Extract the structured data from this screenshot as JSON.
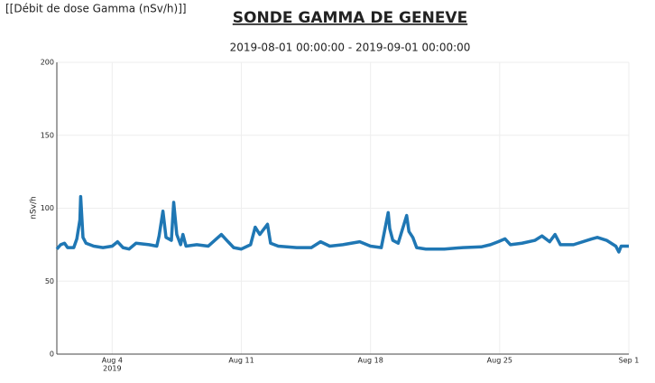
{
  "page_label": "[[Débit de dose Gamma (nSv/h)]]",
  "chart_data": {
    "type": "line",
    "title": "SONDE GAMMA DE GENEVE",
    "subtitle": "2019-08-01 00:00:00 - 2019-09-01 00:00:00",
    "y_label": "nSv/h",
    "xlim": [
      "2019-08-01T00:00",
      "2019-09-01T00:00"
    ],
    "xticks": [
      {
        "value": "2019-08-04T00:00",
        "label": "Aug 4"
      },
      {
        "value": "2019-08-11T00:00",
        "label": "Aug 11"
      },
      {
        "value": "2019-08-18T00:00",
        "label": "Aug 18"
      },
      {
        "value": "2019-08-25T00:00",
        "label": "Aug 25"
      },
      {
        "value": "2019-09-01T00:00",
        "label": "Sep 1"
      }
    ],
    "x_year_label": "2019",
    "ylim": [
      0,
      200
    ],
    "yticks": [
      0,
      50,
      100,
      150,
      200
    ],
    "grid": true,
    "series": [
      {
        "color": "#1f77b4",
        "x": [
          "2019-08-01T00:00",
          "2019-08-01T05:00",
          "2019-08-01T10:00",
          "2019-08-01T14:00",
          "2019-08-01T22:00",
          "2019-08-02T02:00",
          "2019-08-02T06:00",
          "2019-08-02T07:00",
          "2019-08-02T10:00",
          "2019-08-02T14:00",
          "2019-08-03T00:00",
          "2019-08-03T12:00",
          "2019-08-04T00:00",
          "2019-08-04T07:00",
          "2019-08-04T14:00",
          "2019-08-04T22:00",
          "2019-08-05T07:00",
          "2019-08-06T00:00",
          "2019-08-06T10:00",
          "2019-08-06T13:00",
          "2019-08-06T18:00",
          "2019-08-06T22:00",
          "2019-08-07T05:00",
          "2019-08-07T08:00",
          "2019-08-07T12:00",
          "2019-08-07T17:00",
          "2019-08-07T20:00",
          "2019-08-08T00:00",
          "2019-08-08T14:00",
          "2019-08-09T05:00",
          "2019-08-09T22:00",
          "2019-08-10T05:00",
          "2019-08-10T14:00",
          "2019-08-11T00:00",
          "2019-08-11T12:00",
          "2019-08-11T18:00",
          "2019-08-12T00:00",
          "2019-08-12T10:00",
          "2019-08-12T14:00",
          "2019-08-13T00:00",
          "2019-08-14T00:00",
          "2019-08-14T19:00",
          "2019-08-15T07:00",
          "2019-08-15T19:00",
          "2019-08-16T12:00",
          "2019-08-17T10:00",
          "2019-08-18T00:00",
          "2019-08-18T14:00",
          "2019-08-18T23:00",
          "2019-08-19T01:00",
          "2019-08-19T05:00",
          "2019-08-19T12:00",
          "2019-08-19T23:00",
          "2019-08-20T02:00",
          "2019-08-20T07:00",
          "2019-08-20T12:00",
          "2019-08-21T00:00",
          "2019-08-22T00:00",
          "2019-08-23T00:00",
          "2019-08-24T00:00",
          "2019-08-24T12:00",
          "2019-08-24T22:00",
          "2019-08-25T07:00",
          "2019-08-25T14:00",
          "2019-08-26T05:00",
          "2019-08-26T22:00",
          "2019-08-27T07:00",
          "2019-08-27T17:00",
          "2019-08-28T00:00",
          "2019-08-28T07:00",
          "2019-08-29T00:00",
          "2019-08-30T00:00",
          "2019-08-30T07:00",
          "2019-08-30T19:00",
          "2019-08-31T07:00",
          "2019-08-31T11:00",
          "2019-08-31T14:00",
          "2019-09-01T00:00"
        ],
        "values": [
          72,
          75,
          76,
          73,
          73,
          79,
          92,
          108,
          80,
          76,
          74,
          73,
          74,
          77,
          73,
          72,
          76,
          75,
          74,
          81,
          98,
          80,
          78,
          104,
          82,
          75,
          82,
          74,
          75,
          74,
          82,
          78,
          73,
          72,
          75,
          87,
          82,
          89,
          76,
          74,
          73,
          73,
          77,
          74,
          75,
          77,
          74,
          73,
          97,
          86,
          78,
          76,
          95,
          84,
          80,
          73,
          72,
          72,
          73,
          73.5,
          75,
          77,
          79,
          75,
          76,
          78,
          81,
          77,
          82,
          75,
          75,
          79,
          80,
          78,
          74,
          70,
          74,
          74
        ]
      }
    ]
  }
}
